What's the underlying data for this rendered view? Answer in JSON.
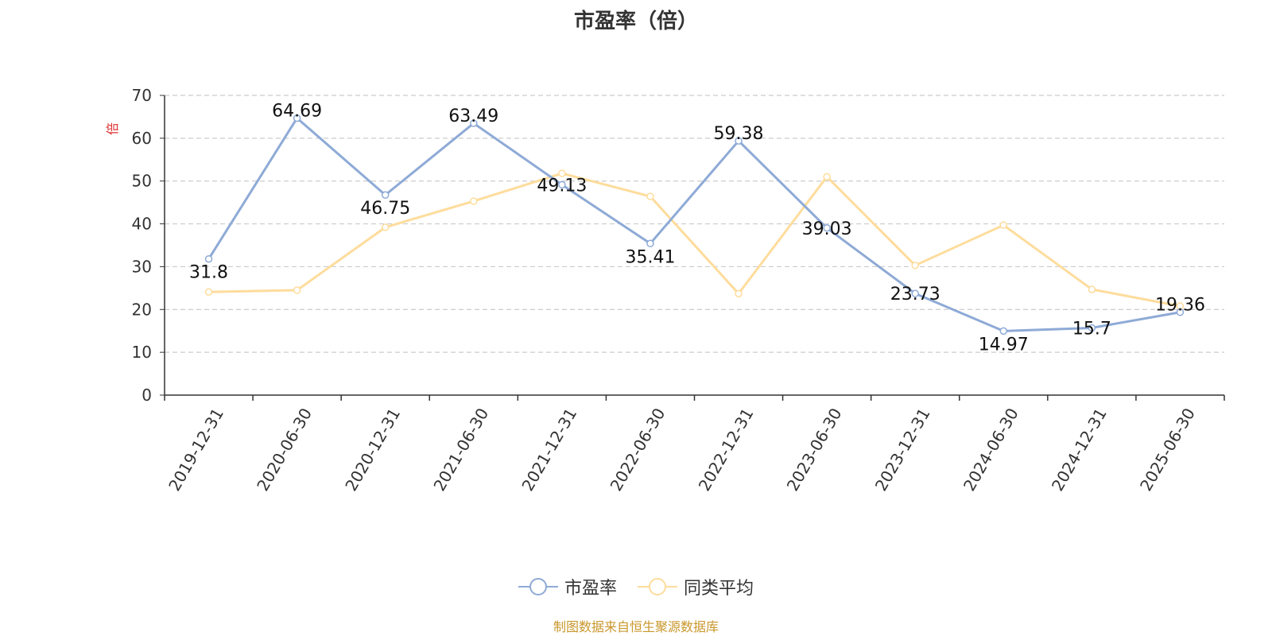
{
  "title": "市盈率（倍）",
  "source": "制图数据来自恒生聚源数据库",
  "colors": {
    "pe": "#8eaad6",
    "avg": "#fedc9c",
    "axis": "#333333",
    "grid": "#cccccc",
    "unit": "#e03030"
  },
  "chart_data": {
    "type": "line",
    "title": "市盈率（倍）",
    "ylabel": "倍",
    "ylim": [
      0,
      70
    ],
    "yticks": [
      0,
      10,
      20,
      30,
      40,
      50,
      60,
      70
    ],
    "grid": true,
    "legend_position": "bottom",
    "categories": [
      "2019-12-31",
      "2020-06-30",
      "2020-12-31",
      "2021-06-30",
      "2021-12-31",
      "2022-06-30",
      "2022-12-31",
      "2023-06-30",
      "2023-12-31",
      "2024-06-30",
      "2024-12-31",
      "2025-06-30"
    ],
    "series": [
      {
        "name": "市盈率",
        "values": [
          31.8,
          64.69,
          46.75,
          63.49,
          49.13,
          35.41,
          59.38,
          39.03,
          23.73,
          14.97,
          15.7,
          19.36
        ],
        "labels": [
          "31.8",
          "64.69",
          "46.75",
          "63.49",
          "49.13",
          "35.41",
          "59.38",
          "39.03",
          "23.73",
          "14.97",
          "15.7",
          "19.36"
        ]
      },
      {
        "name": "同类平均",
        "values": [
          24.1,
          24.5,
          39.2,
          45.3,
          51.8,
          46.4,
          23.7,
          51.0,
          30.3,
          39.7,
          24.7,
          20.8
        ]
      }
    ]
  }
}
